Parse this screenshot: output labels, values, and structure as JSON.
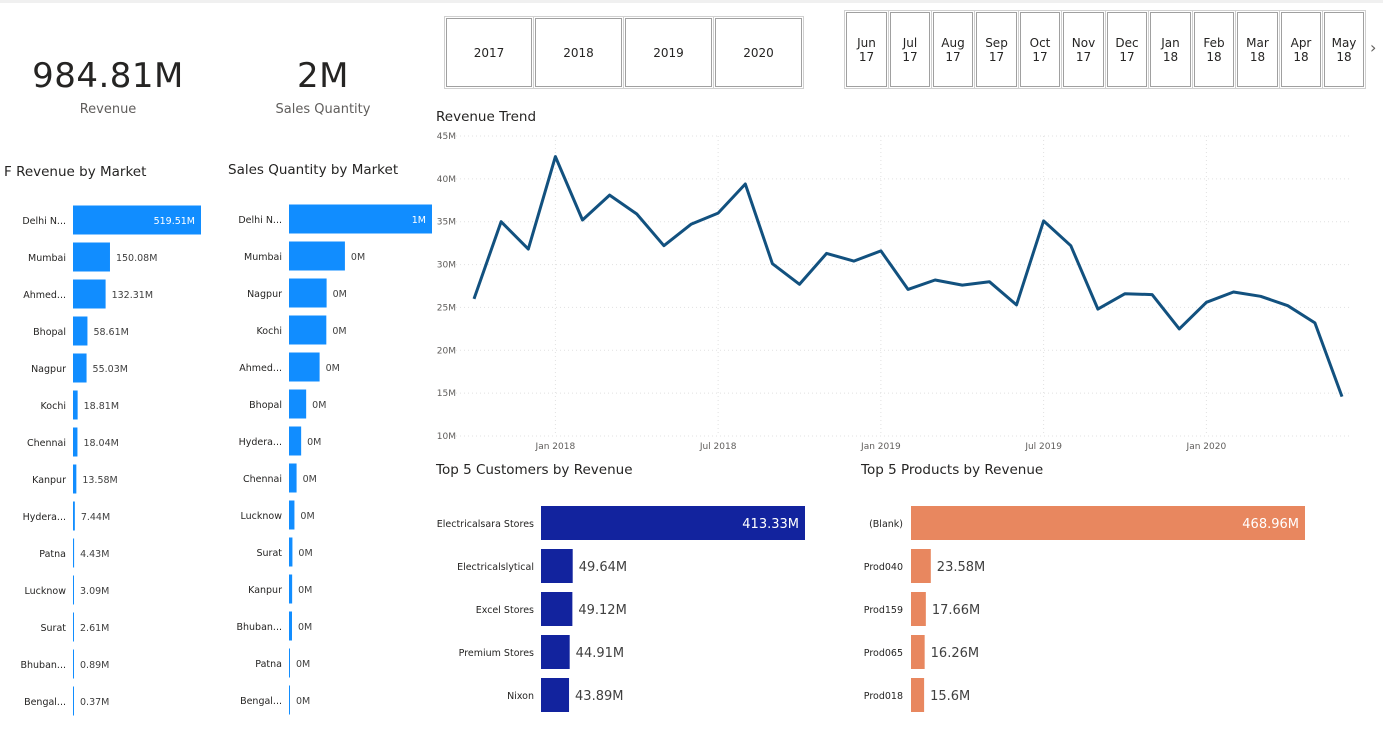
{
  "kpis": {
    "revenue": {
      "value": "984.81M",
      "label": "Revenue"
    },
    "quantity": {
      "value": "2M",
      "label": "Sales Quantity"
    }
  },
  "year_slicer": [
    "2017",
    "2018",
    "2019",
    "2020"
  ],
  "month_slicer": [
    [
      "Jun",
      "17"
    ],
    [
      "Jul",
      "17"
    ],
    [
      "Aug",
      "17"
    ],
    [
      "Sep",
      "17"
    ],
    [
      "Oct",
      "17"
    ],
    [
      "Nov",
      "17"
    ],
    [
      "Dec",
      "17"
    ],
    [
      "Jan",
      "18"
    ],
    [
      "Feb",
      "18"
    ],
    [
      "Mar",
      "18"
    ],
    [
      "Apr",
      "18"
    ],
    [
      "May",
      "18"
    ]
  ],
  "slicer_next": "›",
  "chart_data": [
    {
      "id": "revenue_by_market",
      "type": "bar",
      "orientation": "horizontal",
      "title": "Revenue by Market",
      "title_prefix": "F",
      "color": "#118DFF",
      "categories": [
        "Delhi N...",
        "Mumbai",
        "Ahmed...",
        "Bhopal",
        "Nagpur",
        "Kochi",
        "Chennai",
        "Kanpur",
        "Hydera...",
        "Patna",
        "Lucknow",
        "Surat",
        "Bhuban...",
        "Bengal..."
      ],
      "values": [
        519.51,
        150.08,
        132.31,
        58.61,
        55.03,
        18.81,
        18.04,
        13.58,
        7.44,
        4.43,
        3.09,
        2.61,
        0.89,
        0.37
      ],
      "labels": [
        "519.51M",
        "150.08M",
        "132.31M",
        "58.61M",
        "55.03M",
        "18.81M",
        "18.04M",
        "13.58M",
        "7.44M",
        "4.43M",
        "3.09M",
        "2.61M",
        "0.89M",
        "0.37M"
      ],
      "xmax": 519.51
    },
    {
      "id": "quantity_by_market",
      "type": "bar",
      "orientation": "horizontal",
      "title": "Sales Quantity by Market",
      "color": "#118DFF",
      "categories": [
        "Delhi N...",
        "Mumbai",
        "Nagpur",
        "Kochi",
        "Ahmed...",
        "Bhopal",
        "Hydera...",
        "Chennai",
        "Lucknow",
        "Surat",
        "Kanpur",
        "Bhuban...",
        "Patna",
        "Bengal..."
      ],
      "values": [
        1000000,
        391000,
        263000,
        261000,
        214000,
        120000,
        85000,
        53000,
        38000,
        24000,
        22000,
        21000,
        5000,
        1000
      ],
      "labels": [
        "1M",
        "0M",
        "0M",
        "0M",
        "0M",
        "0M",
        "0M",
        "0M",
        "0M",
        "0M",
        "0M",
        "0M",
        "0M",
        "0M"
      ],
      "xmax": 1000000
    },
    {
      "id": "revenue_trend",
      "type": "line",
      "title": "Revenue Trend",
      "color": "#12517F",
      "x": [
        "Oct 17",
        "Nov 17",
        "Dec 17",
        "Jan 18",
        "Feb 18",
        "Mar 18",
        "Apr 18",
        "May 18",
        "Jun 18",
        "Jul 18",
        "Aug 18",
        "Sep 18",
        "Oct 18",
        "Nov 18",
        "Dec 18",
        "Jan 19",
        "Feb 19",
        "Mar 19",
        "Apr 19",
        "May 19",
        "Jun 19",
        "Jul 19",
        "Aug 19",
        "Sep 19",
        "Oct 19",
        "Nov 19",
        "Dec 19",
        "Jan 20",
        "Feb 20",
        "Mar 20",
        "Apr 20",
        "May 20",
        "Jun 20"
      ],
      "y": [
        26.0,
        35.0,
        31.8,
        42.6,
        35.2,
        38.1,
        35.9,
        32.2,
        34.7,
        36.0,
        39.4,
        30.1,
        27.7,
        31.3,
        30.4,
        31.6,
        27.1,
        28.2,
        27.6,
        28.0,
        25.3,
        35.1,
        32.2,
        24.8,
        26.6,
        26.5,
        22.5,
        25.6,
        26.8,
        26.3,
        25.2,
        23.2,
        14.6
      ],
      "x_ticks": [
        {
          "index": 3,
          "label": "Jan 2018"
        },
        {
          "index": 9,
          "label": "Jul 2018"
        },
        {
          "index": 15,
          "label": "Jan 2019"
        },
        {
          "index": 21,
          "label": "Jul 2019"
        },
        {
          "index": 27,
          "label": "Jan 2020"
        }
      ],
      "y_ticks": [
        10,
        15,
        20,
        25,
        30,
        35,
        40,
        45
      ],
      "y_tick_labels": [
        "10M",
        "15M",
        "20M",
        "25M",
        "30M",
        "35M",
        "40M",
        "45M"
      ],
      "ylim": [
        10,
        45
      ],
      "grid": true
    },
    {
      "id": "top_customers",
      "type": "bar",
      "orientation": "horizontal",
      "title": "Top 5 Customers by Revenue",
      "color": "#12239E",
      "categories": [
        "Electricalsara Stores",
        "Electricalslytical",
        "Excel Stores",
        "Premium Stores",
        "Nixon"
      ],
      "values": [
        413.33,
        49.64,
        49.12,
        44.91,
        43.89
      ],
      "labels": [
        "413.33M",
        "49.64M",
        "49.12M",
        "44.91M",
        "43.89M"
      ],
      "xmax": 413.33
    },
    {
      "id": "top_products",
      "type": "bar",
      "orientation": "horizontal",
      "title": "Top 5 Products by Revenue",
      "color": "#E8875F",
      "categories": [
        "(Blank)",
        "Prod040",
        "Prod159",
        "Prod065",
        "Prod018"
      ],
      "values": [
        468.96,
        23.58,
        17.66,
        16.26,
        15.6
      ],
      "labels": [
        "468.96M",
        "23.58M",
        "17.66M",
        "16.26M",
        "15.6M"
      ],
      "xmax": 468.96
    }
  ]
}
